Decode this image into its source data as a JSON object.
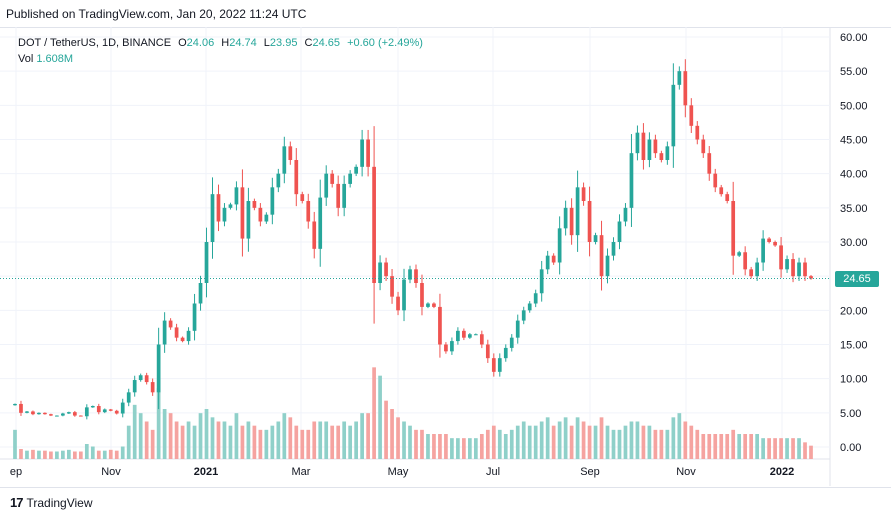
{
  "published": "Published on TradingView.com, Jan 20, 2022 11:24 UTC",
  "legend": {
    "symbol": "DOT / TetherUS, 1D, BINANCE",
    "o_label": "O",
    "o": "24.06",
    "h_label": "H",
    "h": "24.74",
    "l_label": "L",
    "l": "23.95",
    "c_label": "C",
    "c": "24.65",
    "change": "+0.60 (+2.49%)",
    "vol_label": "Vol",
    "vol": "1.608M"
  },
  "last_price": "24.65",
  "footer": {
    "logo_mark": "17",
    "brand": "TradingView"
  },
  "colors": {
    "up": "#26a69a",
    "down": "#ef5350",
    "up_vol": "#8fd0c9",
    "down_vol": "#f5a3a0",
    "grid": "#f0f3fa",
    "text": "#131722"
  },
  "chart_data": {
    "type": "candlestick",
    "title": "DOT / TetherUS, 1D, BINANCE",
    "y_ticks": [
      "60.00",
      "55.00",
      "50.00",
      "45.00",
      "40.00",
      "35.00",
      "30.00",
      "25.00",
      "20.00",
      "15.00",
      "10.00",
      "5.00",
      "0.00"
    ],
    "ylim": [
      0,
      60
    ],
    "x_ticks": [
      "ep",
      "Nov",
      "2021",
      "Mar",
      "May",
      "Jul",
      "Sep",
      "Nov",
      "2022"
    ],
    "last_close": 24.65,
    "closes": [
      6.3,
      5.0,
      5.2,
      4.8,
      5.0,
      4.8,
      4.6,
      4.6,
      4.9,
      5.1,
      4.6,
      4.5,
      5.8,
      6.0,
      5.1,
      5.5,
      5.3,
      4.9,
      6.5,
      8.0,
      9.8,
      10.5,
      9.5,
      8.0,
      15.0,
      18.5,
      17.5,
      16.0,
      15.5,
      17.0,
      21.0,
      24.0,
      30.0,
      37.0,
      33.0,
      35.0,
      35.5,
      38.0,
      30.5,
      36.0,
      35.0,
      33.0,
      34.0,
      38.0,
      40.0,
      44.0,
      42.0,
      37.0,
      36.0,
      33.0,
      29.0,
      36.5,
      40.0,
      38.5,
      35.0,
      38.5,
      40.0,
      41.0,
      45.0,
      41.0,
      24.0,
      27.0,
      25.0,
      22.0,
      20.0,
      24.5,
      26.0,
      24.0,
      20.5,
      21.0,
      20.5,
      15.0,
      14.0,
      15.5,
      17.0,
      16.0,
      16.5,
      16.5,
      15.0,
      13.0,
      11.0,
      13.0,
      14.5,
      16.0,
      18.5,
      20.0,
      21.0,
      22.5,
      26.0,
      28.0,
      27.0,
      32.0,
      35.0,
      31.0,
      38.0,
      36.0,
      30.0,
      31.0,
      25.0,
      28.0,
      30.0,
      33.0,
      35.0,
      43.0,
      46.0,
      42.0,
      45.0,
      43.0,
      42.0,
      44.0,
      53.0,
      55.0,
      50.0,
      47.0,
      45.0,
      43.0,
      40.0,
      38.0,
      37.0,
      36.0,
      28.0,
      28.5,
      26.0,
      25.0,
      27.0,
      30.5,
      30.0,
      29.5,
      26.0,
      27.5,
      25.0,
      27.0,
      25.0,
      24.65
    ],
    "volumes": [
      3.5,
      1.2,
      1.0,
      1.1,
      1.0,
      1.0,
      0.9,
      0.9,
      1.0,
      1.1,
      0.9,
      0.9,
      1.8,
      1.5,
      1.0,
      1.0,
      1.1,
      1.0,
      1.5,
      4.0,
      6.5,
      5.5,
      4.5,
      3.5,
      8.5,
      6.0,
      5.5,
      4.5,
      4.0,
      4.5,
      4.0,
      5.5,
      6.0,
      5.0,
      4.5,
      4.5,
      4.0,
      5.5,
      4.0,
      4.5,
      4.0,
      3.5,
      3.5,
      4.0,
      4.5,
      5.5,
      5.0,
      4.0,
      3.5,
      3.5,
      4.5,
      4.5,
      4.5,
      4.0,
      4.0,
      4.5,
      4.0,
      4.5,
      5.5,
      5.5,
      11.0,
      10.0,
      7.0,
      6.0,
      5.0,
      4.5,
      4.0,
      3.5,
      3.5,
      3.0,
      3.0,
      3.0,
      3.0,
      2.5,
      2.5,
      2.5,
      2.5,
      2.5,
      3.0,
      3.5,
      4.0,
      3.5,
      3.0,
      3.5,
      4.0,
      4.5,
      4.0,
      4.0,
      4.5,
      5.0,
      4.0,
      4.5,
      5.0,
      4.0,
      5.0,
      4.5,
      4.0,
      4.0,
      5.0,
      4.0,
      3.5,
      3.5,
      4.0,
      4.5,
      4.5,
      4.0,
      4.0,
      3.5,
      3.5,
      3.5,
      5.0,
      5.5,
      4.5,
      4.0,
      3.5,
      3.0,
      3.0,
      3.0,
      3.0,
      3.0,
      3.5,
      3.0,
      3.0,
      3.0,
      3.0,
      2.5,
      2.5,
      2.5,
      2.5,
      2.5,
      2.5,
      2.5,
      2.0,
      1.6
    ]
  }
}
